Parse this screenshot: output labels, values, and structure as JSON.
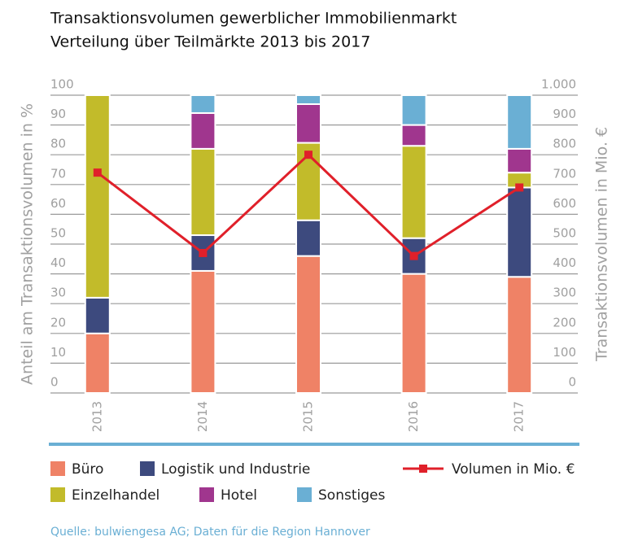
{
  "chart_data": {
    "type": "bar",
    "title": "Transaktionsvolumen gewerblicher Immobilienmarkt",
    "subtitle": "Verteilung über Teilmärkte 2013 bis 2017",
    "ylabel": "Anteil am Transaktionsvolumen in %",
    "y2label": "Transaktionsvolumen in Mio. €",
    "source": "Quelle: bulwiengesa AG; Daten für die Region Hannover",
    "categories": [
      "2013",
      "2014",
      "2015",
      "2016",
      "2017"
    ],
    "stacked": true,
    "grid": true,
    "ylim": [
      0,
      100
    ],
    "yticks": [
      0,
      10,
      20,
      30,
      40,
      50,
      60,
      70,
      80,
      90,
      100
    ],
    "y2lim": [
      0,
      1000
    ],
    "y2ticks": [
      0,
      100,
      200,
      300,
      400,
      500,
      600,
      700,
      800,
      900,
      {
        "value": 1000,
        "label": "1.000"
      }
    ],
    "series": [
      {
        "name": "Büro",
        "color": "#ef8266",
        "values": [
          20,
          41,
          46,
          40,
          39
        ]
      },
      {
        "name": "Logistik und Industrie",
        "color": "#3d4a7e",
        "values": [
          12,
          12,
          12,
          12,
          30
        ]
      },
      {
        "name": "Einzelhandel",
        "color": "#c2bb2a",
        "values": [
          68,
          29,
          26,
          31,
          5
        ]
      },
      {
        "name": "Hotel",
        "color": "#a0368e",
        "values": [
          0,
          12,
          13,
          7,
          8
        ]
      },
      {
        "name": "Sonstiges",
        "color": "#6aafd4",
        "values": [
          0,
          6,
          3,
          10,
          18
        ]
      },
      {
        "name": "Volumen in Mio. €",
        "type": "line",
        "axis": "y2",
        "color": "#e0202a",
        "values": [
          740,
          470,
          800,
          460,
          690
        ]
      }
    ]
  }
}
